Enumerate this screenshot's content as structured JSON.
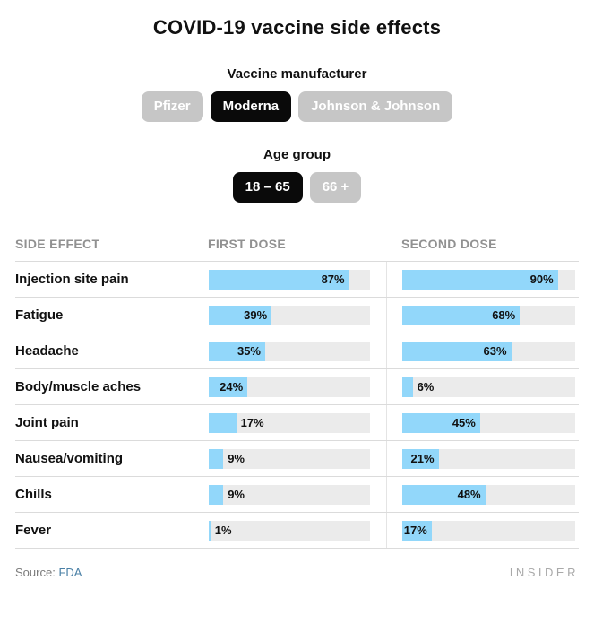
{
  "page": {
    "title": "COVID-19 vaccine side effects"
  },
  "controls": {
    "manufacturer": {
      "label": "Vaccine manufacturer",
      "options": [
        {
          "id": "pfizer",
          "label": "Pfizer",
          "selected": false
        },
        {
          "id": "moderna",
          "label": "Moderna",
          "selected": true
        },
        {
          "id": "johnson-and-johnson",
          "label": "Johnson & Johnson",
          "selected": false
        }
      ]
    },
    "age_group": {
      "label": "Age group",
      "options": [
        {
          "id": "18-65",
          "label": "18 – 65",
          "selected": true
        },
        {
          "id": "66-plus",
          "label": "66 +",
          "selected": false
        }
      ]
    }
  },
  "table": {
    "columns": [
      "SIDE EFFECT",
      "FIRST DOSE",
      "SECOND DOSE"
    ]
  },
  "chart_data": {
    "type": "bar",
    "title": "COVID-19 vaccine side effects",
    "categories": [
      "Injection site pain",
      "Fatigue",
      "Headache",
      "Body/muscle aches",
      "Joint pain",
      "Nausea/vomiting",
      "Chills",
      "Fever"
    ],
    "series": [
      {
        "name": "FIRST DOSE",
        "values": [
          87,
          39,
          35,
          24,
          17,
          9,
          9,
          1
        ],
        "labels": [
          "87%",
          "39%",
          "35%",
          "24%",
          "17%",
          "9%",
          "9%",
          "1%"
        ],
        "label_inside": [
          true,
          true,
          true,
          true,
          false,
          false,
          false,
          false
        ]
      },
      {
        "name": "SECOND DOSE",
        "values": [
          90,
          68,
          63,
          6,
          45,
          21,
          48,
          17
        ],
        "labels": [
          "90%",
          "68%",
          "63%",
          "6%",
          "45%",
          "21%",
          "48%",
          "17%"
        ],
        "label_inside": [
          true,
          true,
          true,
          false,
          true,
          true,
          true,
          true
        ]
      }
    ],
    "xlim": [
      0,
      100
    ],
    "unit": "%",
    "grid": false,
    "legend_position": "column-headers",
    "bar_color": "#92D7FA",
    "track_color": "#EBEBEB"
  },
  "footer": {
    "source_label": "Source:",
    "source_link": "FDA",
    "brand": "INSIDER"
  },
  "colors": {
    "accent_blue": "#92D7FA",
    "track_gray": "#EBEBEB",
    "pill_inactive": "#C6C6C6",
    "pill_active": "#0A0A0A",
    "header_text": "#919191",
    "divider": "#DBDBDB",
    "link": "#4A80A6"
  }
}
